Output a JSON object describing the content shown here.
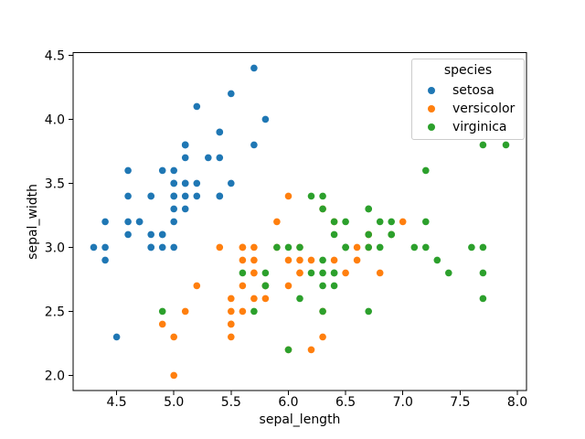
{
  "chart_data": {
    "type": "scatter",
    "xlabel": "sepal_length",
    "ylabel": "sepal_width",
    "legend_title": "species",
    "legend_position": "upper right",
    "xlim": [
      4.12,
      8.08
    ],
    "ylim": [
      1.88,
      4.52
    ],
    "xticks": [
      "4.5",
      "5.0",
      "5.5",
      "6.0",
      "6.5",
      "7.0",
      "7.5",
      "8.0"
    ],
    "yticks": [
      "2.0",
      "2.5",
      "3.0",
      "3.5",
      "4.0",
      "4.5"
    ],
    "grid": false,
    "background": "#ffffff",
    "spine_color": "#000000",
    "series": [
      {
        "name": "setosa",
        "color": "#1f77b4",
        "points": [
          [
            5.1,
            3.5
          ],
          [
            4.9,
            3.0
          ],
          [
            4.7,
            3.2
          ],
          [
            4.6,
            3.1
          ],
          [
            5.0,
            3.6
          ],
          [
            5.4,
            3.9
          ],
          [
            4.6,
            3.4
          ],
          [
            5.0,
            3.4
          ],
          [
            4.4,
            2.9
          ],
          [
            4.9,
            3.1
          ],
          [
            5.4,
            3.7
          ],
          [
            4.8,
            3.4
          ],
          [
            4.8,
            3.0
          ],
          [
            4.3,
            3.0
          ],
          [
            5.8,
            4.0
          ],
          [
            5.7,
            4.4
          ],
          [
            5.4,
            3.9
          ],
          [
            5.1,
            3.5
          ],
          [
            5.7,
            3.8
          ],
          [
            5.1,
            3.8
          ],
          [
            5.4,
            3.4
          ],
          [
            5.1,
            3.7
          ],
          [
            4.6,
            3.6
          ],
          [
            5.1,
            3.3
          ],
          [
            4.8,
            3.4
          ],
          [
            5.0,
            3.0
          ],
          [
            5.0,
            3.4
          ],
          [
            5.2,
            3.5
          ],
          [
            5.2,
            3.4
          ],
          [
            4.7,
            3.2
          ],
          [
            4.8,
            3.1
          ],
          [
            5.4,
            3.4
          ],
          [
            5.2,
            4.1
          ],
          [
            5.5,
            4.2
          ],
          [
            4.9,
            3.1
          ],
          [
            5.0,
            3.2
          ],
          [
            5.5,
            3.5
          ],
          [
            4.9,
            3.6
          ],
          [
            4.4,
            3.0
          ],
          [
            5.1,
            3.4
          ],
          [
            5.0,
            3.5
          ],
          [
            4.5,
            2.3
          ],
          [
            4.4,
            3.2
          ],
          [
            5.0,
            3.5
          ],
          [
            5.1,
            3.8
          ],
          [
            4.8,
            3.0
          ],
          [
            5.1,
            3.8
          ],
          [
            4.6,
            3.2
          ],
          [
            5.3,
            3.7
          ],
          [
            5.0,
            3.3
          ]
        ]
      },
      {
        "name": "versicolor",
        "color": "#ff7f0e",
        "points": [
          [
            7.0,
            3.2
          ],
          [
            6.4,
            3.2
          ],
          [
            6.9,
            3.1
          ],
          [
            5.5,
            2.3
          ],
          [
            6.5,
            2.8
          ],
          [
            5.7,
            2.8
          ],
          [
            6.3,
            3.3
          ],
          [
            4.9,
            2.4
          ],
          [
            6.6,
            2.9
          ],
          [
            5.2,
            2.7
          ],
          [
            5.0,
            2.0
          ],
          [
            5.9,
            3.0
          ],
          [
            6.0,
            2.2
          ],
          [
            6.1,
            2.9
          ],
          [
            5.6,
            2.9
          ],
          [
            6.7,
            3.1
          ],
          [
            5.6,
            3.0
          ],
          [
            5.8,
            2.7
          ],
          [
            6.2,
            2.2
          ],
          [
            5.6,
            2.5
          ],
          [
            5.9,
            3.2
          ],
          [
            6.1,
            2.8
          ],
          [
            6.3,
            2.5
          ],
          [
            6.1,
            2.8
          ],
          [
            6.4,
            2.9
          ],
          [
            6.6,
            3.0
          ],
          [
            6.8,
            2.8
          ],
          [
            6.7,
            3.0
          ],
          [
            6.0,
            2.9
          ],
          [
            5.7,
            2.6
          ],
          [
            5.5,
            2.4
          ],
          [
            5.5,
            2.4
          ],
          [
            5.8,
            2.7
          ],
          [
            6.0,
            2.7
          ],
          [
            5.4,
            3.0
          ],
          [
            6.0,
            3.4
          ],
          [
            6.7,
            3.1
          ],
          [
            6.3,
            2.3
          ],
          [
            5.6,
            3.0
          ],
          [
            5.5,
            2.5
          ],
          [
            5.5,
            2.6
          ],
          [
            6.1,
            3.0
          ],
          [
            5.8,
            2.6
          ],
          [
            5.0,
            2.3
          ],
          [
            5.6,
            2.7
          ],
          [
            5.7,
            3.0
          ],
          [
            5.7,
            2.9
          ],
          [
            6.2,
            2.9
          ],
          [
            5.1,
            2.5
          ],
          [
            5.7,
            2.8
          ]
        ]
      },
      {
        "name": "virginica",
        "color": "#2ca02c",
        "points": [
          [
            6.3,
            3.3
          ],
          [
            5.8,
            2.7
          ],
          [
            7.1,
            3.0
          ],
          [
            6.3,
            2.9
          ],
          [
            6.5,
            3.0
          ],
          [
            7.6,
            3.0
          ],
          [
            4.9,
            2.5
          ],
          [
            7.3,
            2.9
          ],
          [
            6.7,
            2.5
          ],
          [
            7.2,
            3.6
          ],
          [
            6.5,
            3.2
          ],
          [
            6.4,
            2.7
          ],
          [
            6.8,
            3.0
          ],
          [
            5.7,
            2.5
          ],
          [
            5.8,
            2.8
          ],
          [
            6.4,
            3.2
          ],
          [
            6.5,
            3.0
          ],
          [
            7.7,
            3.8
          ],
          [
            7.7,
            2.6
          ],
          [
            6.0,
            2.2
          ],
          [
            6.9,
            3.2
          ],
          [
            5.6,
            2.8
          ],
          [
            7.7,
            2.8
          ],
          [
            6.3,
            2.7
          ],
          [
            6.7,
            3.3
          ],
          [
            7.2,
            3.2
          ],
          [
            6.2,
            2.8
          ],
          [
            6.1,
            3.0
          ],
          [
            6.4,
            2.8
          ],
          [
            7.2,
            3.0
          ],
          [
            7.4,
            2.8
          ],
          [
            7.9,
            3.8
          ],
          [
            6.4,
            2.8
          ],
          [
            6.3,
            2.8
          ],
          [
            6.1,
            2.6
          ],
          [
            7.7,
            3.0
          ],
          [
            6.3,
            3.4
          ],
          [
            6.4,
            3.1
          ],
          [
            6.0,
            3.0
          ],
          [
            6.9,
            3.1
          ],
          [
            6.7,
            3.1
          ],
          [
            6.9,
            3.1
          ],
          [
            5.8,
            2.7
          ],
          [
            6.8,
            3.2
          ],
          [
            6.7,
            3.3
          ],
          [
            6.7,
            3.0
          ],
          [
            6.3,
            2.5
          ],
          [
            6.5,
            3.0
          ],
          [
            6.2,
            3.4
          ],
          [
            5.9,
            3.0
          ]
        ]
      }
    ]
  }
}
